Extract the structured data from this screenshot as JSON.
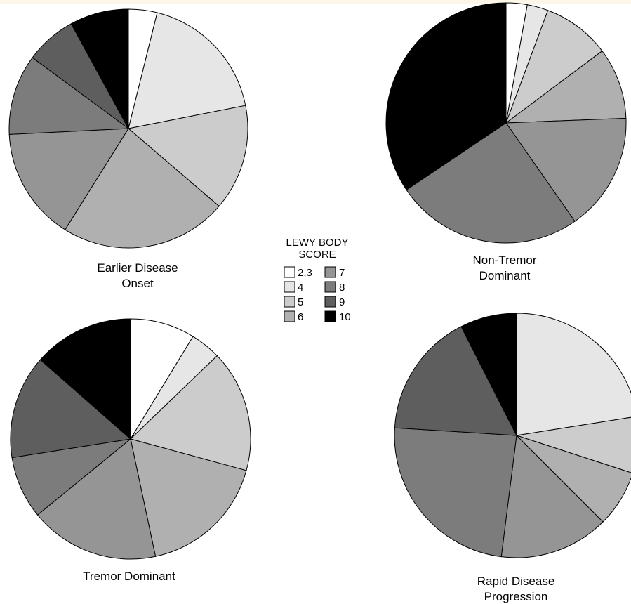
{
  "legend": {
    "title_lines": [
      "LEWY BODY",
      "SCORE"
    ],
    "items": [
      {
        "label": "2,3",
        "color": "#ffffff"
      },
      {
        "label": "4",
        "color": "#e6e6e6"
      },
      {
        "label": "5",
        "color": "#cccccc"
      },
      {
        "label": "6",
        "color": "#b0b0b0"
      },
      {
        "label": "7",
        "color": "#959595"
      },
      {
        "label": "8",
        "color": "#7c7c7c"
      },
      {
        "label": "9",
        "color": "#5e5e5e"
      },
      {
        "label": "10",
        "color": "#000000"
      }
    ]
  },
  "chart_data": [
    {
      "type": "pie",
      "title_lines": [
        "Earlier Disease",
        "Onset"
      ],
      "categories": [
        "2,3",
        "4",
        "5",
        "6",
        "7",
        "8",
        "9",
        "10"
      ],
      "values": [
        3.7,
        17.2,
        13.7,
        21.6,
        14.6,
        10.4,
        6.6,
        7.6
      ]
    },
    {
      "type": "pie",
      "title_lines": [
        "Non-Tremor",
        "Dominant"
      ],
      "categories": [
        "2,3",
        "4",
        "5",
        "6",
        "7",
        "8",
        "9",
        "10"
      ],
      "values": [
        2.8,
        2.8,
        9.0,
        9.5,
        15.7,
        25.0,
        0,
        34.0
      ]
    },
    {
      "type": "pie",
      "title_lines": [
        "Tremor Dominant"
      ],
      "categories": [
        "2,3",
        "4",
        "5",
        "6",
        "7",
        "8",
        "9",
        "10"
      ],
      "values": [
        8.5,
        4.0,
        16.0,
        17.0,
        17.0,
        8.2,
        13.6,
        13.2
      ]
    },
    {
      "type": "pie",
      "title_lines": [
        "Rapid Disease",
        "Progression"
      ],
      "categories": [
        "2,3",
        "4",
        "5",
        "6",
        "7",
        "8",
        "9",
        "10"
      ],
      "values": [
        0,
        22.5,
        7.5,
        7.5,
        14.5,
        24.0,
        16.5,
        7.5
      ]
    }
  ]
}
